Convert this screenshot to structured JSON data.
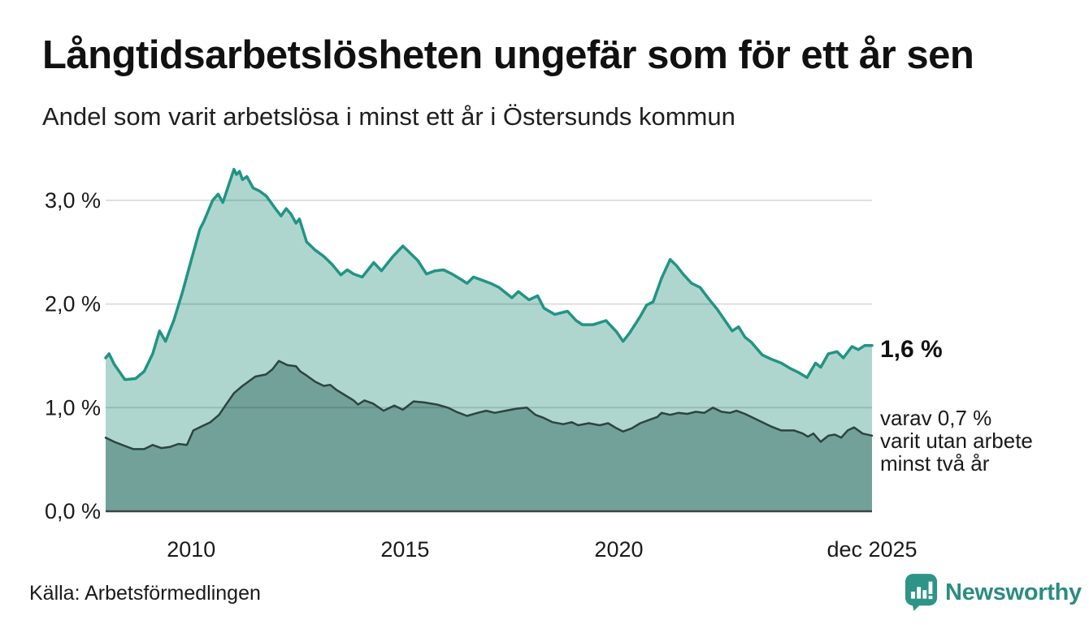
{
  "header": {
    "title": "Långtidsarbetslösheten ungefär som för ett år sen",
    "subtitle": "Andel som varit arbetslösa i minst ett år i Östersunds kommun"
  },
  "annotations": {
    "latest_value": "1,6 %",
    "secondary": "varav 0,7 %\nvarit utan arbete\nminst två år"
  },
  "footer": {
    "source": "Källa: Arbetsförmedlingen",
    "brand": "Newsworthy"
  },
  "colors": {
    "title_text": "#111111",
    "body_text": "#1a1a1a",
    "gridline": "rgba(0,0,0,0.13)",
    "baseline": "#3a4543",
    "brand_teal": "#2c8c80",
    "logo_bubble": "#2e9488"
  },
  "chart_data": {
    "type": "area",
    "title": "Långtidsarbetslösheten ungefär som för ett år sen",
    "subtitle": "Andel som varit arbetslösa i minst ett år i Östersunds kommun",
    "xlabel": "",
    "ylabel": "",
    "grid": true,
    "legend_position": "none",
    "xlim": [
      2008.0,
      2025.92
    ],
    "ylim": [
      0,
      3.45
    ],
    "x_ticks": [
      {
        "label": "2010",
        "year": 2010
      },
      {
        "label": "2015",
        "year": 2015
      },
      {
        "label": "2020",
        "year": 2020
      },
      {
        "label": "dec 2025",
        "year": 2025.92
      }
    ],
    "y_ticks": [
      {
        "label": "0,0 %",
        "value": 0
      },
      {
        "label": "1,0 %",
        "value": 1
      },
      {
        "label": "2,0 %",
        "value": 2
      },
      {
        "label": "3,0 %",
        "value": 3
      }
    ],
    "series": [
      {
        "name": "Andel arbetslösa minst ett år",
        "end_label": "1,6 %",
        "end_value": 1.6,
        "color": "#229483",
        "fill": "#aed6cf",
        "stroke_width": 3.5,
        "points": [
          [
            2008.0,
            1.48
          ],
          [
            2008.08,
            1.52
          ],
          [
            2008.2,
            1.42
          ],
          [
            2008.45,
            1.27
          ],
          [
            2008.7,
            1.28
          ],
          [
            2008.9,
            1.35
          ],
          [
            2009.1,
            1.52
          ],
          [
            2009.26,
            1.74
          ],
          [
            2009.4,
            1.64
          ],
          [
            2009.6,
            1.85
          ],
          [
            2009.8,
            2.12
          ],
          [
            2010.0,
            2.42
          ],
          [
            2010.2,
            2.72
          ],
          [
            2010.3,
            2.8
          ],
          [
            2010.5,
            3.0
          ],
          [
            2010.63,
            3.06
          ],
          [
            2010.74,
            2.98
          ],
          [
            2011.0,
            3.3
          ],
          [
            2011.06,
            3.25
          ],
          [
            2011.13,
            3.28
          ],
          [
            2011.2,
            3.2
          ],
          [
            2011.3,
            3.23
          ],
          [
            2011.45,
            3.12
          ],
          [
            2011.6,
            3.09
          ],
          [
            2011.76,
            3.04
          ],
          [
            2011.95,
            2.93
          ],
          [
            2012.1,
            2.85
          ],
          [
            2012.22,
            2.92
          ],
          [
            2012.33,
            2.87
          ],
          [
            2012.45,
            2.78
          ],
          [
            2012.53,
            2.82
          ],
          [
            2012.7,
            2.6
          ],
          [
            2012.9,
            2.52
          ],
          [
            2013.1,
            2.46
          ],
          [
            2013.3,
            2.38
          ],
          [
            2013.5,
            2.28
          ],
          [
            2013.65,
            2.33
          ],
          [
            2013.8,
            2.29
          ],
          [
            2014.0,
            2.26
          ],
          [
            2014.27,
            2.4
          ],
          [
            2014.45,
            2.32
          ],
          [
            2014.7,
            2.45
          ],
          [
            2014.95,
            2.56
          ],
          [
            2015.1,
            2.5
          ],
          [
            2015.3,
            2.42
          ],
          [
            2015.5,
            2.29
          ],
          [
            2015.7,
            2.32
          ],
          [
            2015.9,
            2.33
          ],
          [
            2016.1,
            2.29
          ],
          [
            2016.3,
            2.24
          ],
          [
            2016.45,
            2.2
          ],
          [
            2016.6,
            2.26
          ],
          [
            2016.8,
            2.23
          ],
          [
            2017.0,
            2.2
          ],
          [
            2017.2,
            2.16
          ],
          [
            2017.5,
            2.06
          ],
          [
            2017.65,
            2.12
          ],
          [
            2017.9,
            2.04
          ],
          [
            2018.1,
            2.08
          ],
          [
            2018.25,
            1.96
          ],
          [
            2018.5,
            1.9
          ],
          [
            2018.8,
            1.93
          ],
          [
            2019.0,
            1.84
          ],
          [
            2019.15,
            1.8
          ],
          [
            2019.4,
            1.8
          ],
          [
            2019.7,
            1.84
          ],
          [
            2019.95,
            1.73
          ],
          [
            2020.1,
            1.64
          ],
          [
            2020.25,
            1.72
          ],
          [
            2020.5,
            1.88
          ],
          [
            2020.65,
            1.99
          ],
          [
            2020.8,
            2.02
          ],
          [
            2021.0,
            2.25
          ],
          [
            2021.2,
            2.43
          ],
          [
            2021.35,
            2.37
          ],
          [
            2021.5,
            2.29
          ],
          [
            2021.7,
            2.2
          ],
          [
            2021.9,
            2.16
          ],
          [
            2022.1,
            2.05
          ],
          [
            2022.3,
            1.95
          ],
          [
            2022.5,
            1.83
          ],
          [
            2022.65,
            1.74
          ],
          [
            2022.8,
            1.78
          ],
          [
            2022.95,
            1.68
          ],
          [
            2023.1,
            1.63
          ],
          [
            2023.35,
            1.51
          ],
          [
            2023.55,
            1.47
          ],
          [
            2023.8,
            1.43
          ],
          [
            2024.0,
            1.38
          ],
          [
            2024.2,
            1.34
          ],
          [
            2024.4,
            1.29
          ],
          [
            2024.6,
            1.43
          ],
          [
            2024.72,
            1.39
          ],
          [
            2024.9,
            1.52
          ],
          [
            2025.1,
            1.54
          ],
          [
            2025.25,
            1.48
          ],
          [
            2025.45,
            1.59
          ],
          [
            2025.6,
            1.56
          ],
          [
            2025.75,
            1.6
          ],
          [
            2025.92,
            1.6
          ]
        ]
      },
      {
        "name": "Andel arbetslösa minst två år",
        "end_label": "0,7 %",
        "end_value": 0.7,
        "color": "#2d443f",
        "fill": "#72a199",
        "stroke_width": 2.5,
        "points": [
          [
            2008.0,
            0.71
          ],
          [
            2008.2,
            0.67
          ],
          [
            2008.45,
            0.63
          ],
          [
            2008.65,
            0.6
          ],
          [
            2008.9,
            0.6
          ],
          [
            2009.1,
            0.64
          ],
          [
            2009.3,
            0.61
          ],
          [
            2009.5,
            0.62
          ],
          [
            2009.7,
            0.65
          ],
          [
            2009.9,
            0.64
          ],
          [
            2010.05,
            0.78
          ],
          [
            2010.25,
            0.82
          ],
          [
            2010.45,
            0.86
          ],
          [
            2010.65,
            0.93
          ],
          [
            2010.8,
            1.02
          ],
          [
            2011.0,
            1.14
          ],
          [
            2011.2,
            1.21
          ],
          [
            2011.5,
            1.3
          ],
          [
            2011.75,
            1.32
          ],
          [
            2011.9,
            1.37
          ],
          [
            2012.05,
            1.45
          ],
          [
            2012.25,
            1.41
          ],
          [
            2012.45,
            1.4
          ],
          [
            2012.55,
            1.35
          ],
          [
            2012.7,
            1.31
          ],
          [
            2012.9,
            1.25
          ],
          [
            2013.1,
            1.21
          ],
          [
            2013.25,
            1.22
          ],
          [
            2013.4,
            1.17
          ],
          [
            2013.6,
            1.12
          ],
          [
            2013.8,
            1.07
          ],
          [
            2013.9,
            1.03
          ],
          [
            2014.05,
            1.07
          ],
          [
            2014.25,
            1.04
          ],
          [
            2014.5,
            0.97
          ],
          [
            2014.75,
            1.02
          ],
          [
            2014.95,
            0.98
          ],
          [
            2015.2,
            1.06
          ],
          [
            2015.45,
            1.05
          ],
          [
            2015.75,
            1.03
          ],
          [
            2016.0,
            1.0
          ],
          [
            2016.2,
            0.96
          ],
          [
            2016.45,
            0.92
          ],
          [
            2016.7,
            0.95
          ],
          [
            2016.9,
            0.97
          ],
          [
            2017.1,
            0.95
          ],
          [
            2017.35,
            0.97
          ],
          [
            2017.6,
            0.99
          ],
          [
            2017.85,
            1.0
          ],
          [
            2018.05,
            0.93
          ],
          [
            2018.25,
            0.9
          ],
          [
            2018.45,
            0.86
          ],
          [
            2018.7,
            0.84
          ],
          [
            2018.9,
            0.86
          ],
          [
            2019.05,
            0.83
          ],
          [
            2019.3,
            0.85
          ],
          [
            2019.55,
            0.83
          ],
          [
            2019.75,
            0.85
          ],
          [
            2019.95,
            0.8
          ],
          [
            2020.1,
            0.77
          ],
          [
            2020.3,
            0.8
          ],
          [
            2020.5,
            0.85
          ],
          [
            2020.7,
            0.88
          ],
          [
            2020.9,
            0.91
          ],
          [
            2021.0,
            0.95
          ],
          [
            2021.2,
            0.93
          ],
          [
            2021.4,
            0.95
          ],
          [
            2021.6,
            0.94
          ],
          [
            2021.8,
            0.96
          ],
          [
            2022.0,
            0.95
          ],
          [
            2022.2,
            1.0
          ],
          [
            2022.4,
            0.96
          ],
          [
            2022.6,
            0.95
          ],
          [
            2022.75,
            0.97
          ],
          [
            2022.95,
            0.94
          ],
          [
            2023.25,
            0.88
          ],
          [
            2023.55,
            0.82
          ],
          [
            2023.8,
            0.78
          ],
          [
            2024.1,
            0.78
          ],
          [
            2024.3,
            0.75
          ],
          [
            2024.42,
            0.72
          ],
          [
            2024.55,
            0.75
          ],
          [
            2024.72,
            0.67
          ],
          [
            2024.9,
            0.73
          ],
          [
            2025.05,
            0.74
          ],
          [
            2025.2,
            0.71
          ],
          [
            2025.35,
            0.78
          ],
          [
            2025.5,
            0.81
          ],
          [
            2025.7,
            0.75
          ],
          [
            2025.92,
            0.73
          ]
        ]
      }
    ]
  }
}
